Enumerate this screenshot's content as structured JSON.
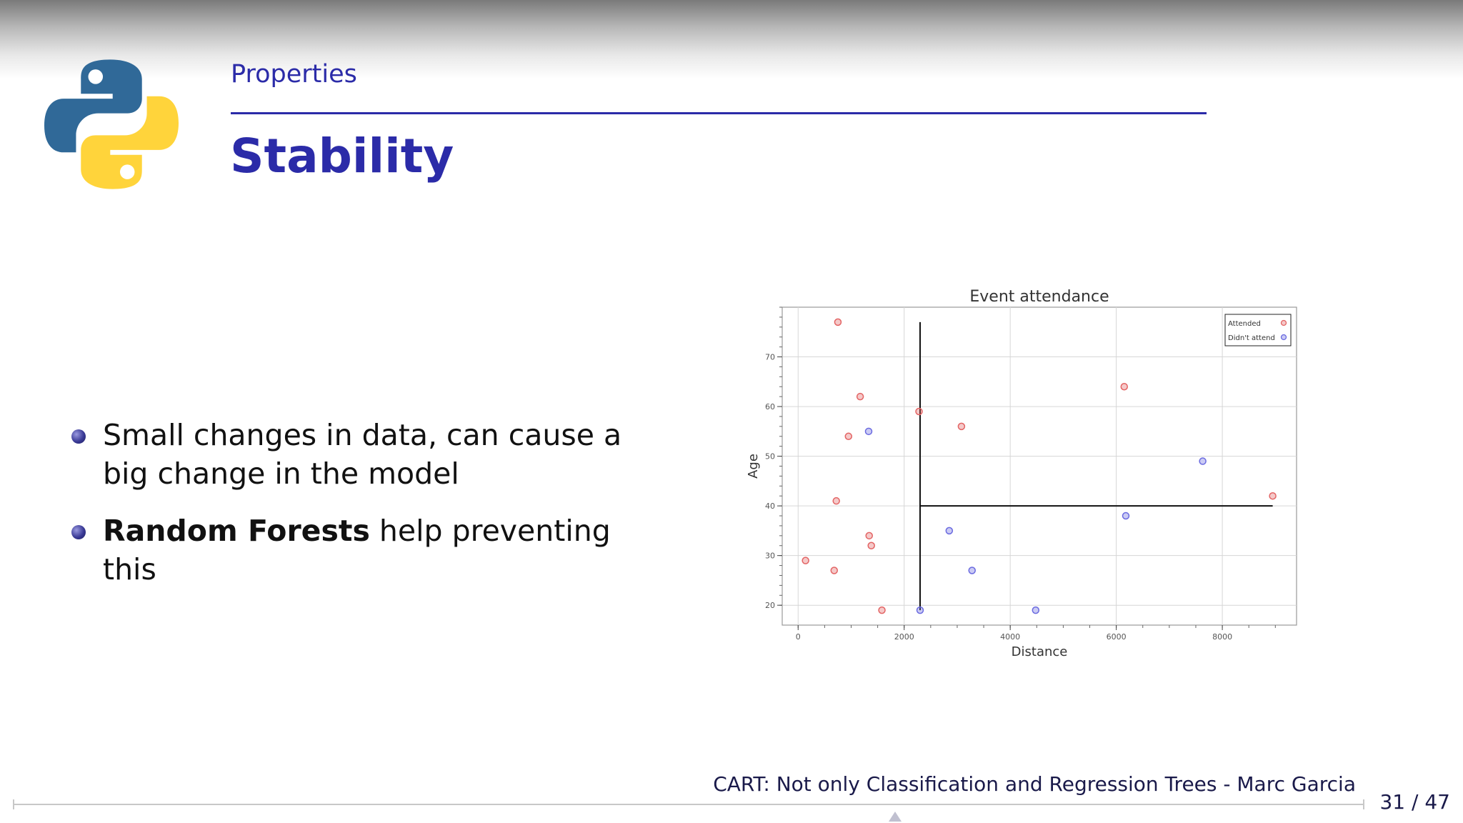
{
  "slide": {
    "section": "Properties",
    "title": "Stability",
    "bullets": [
      {
        "text": "Small changes in data, can cause a big change in the model",
        "bold": ""
      },
      {
        "bold": "Random Forests",
        "text": " help preventing this"
      }
    ]
  },
  "footer": {
    "text": "CART: Not only Classification and Regression Trees - Marc Garcia",
    "page_current": "31",
    "page_total": "47",
    "page_sep": " / "
  },
  "logo": {
    "icon": "python-logo-icon",
    "blue": "#306998",
    "yellow": "#FFD43B"
  },
  "chart_data": {
    "type": "scatter",
    "title": "Event attendance",
    "xlabel": "Distance",
    "ylabel": "Age",
    "xlim": [
      -300,
      9400
    ],
    "ylim": [
      16,
      80
    ],
    "xticks": [
      0,
      2000,
      4000,
      6000,
      8000
    ],
    "yticks": [
      20,
      30,
      40,
      50,
      60,
      70
    ],
    "grid": true,
    "legend_position": "top-right",
    "series": [
      {
        "name": "Attended",
        "color": "#e36464",
        "points": [
          [
            750,
            77
          ],
          [
            1170,
            62
          ],
          [
            950,
            54
          ],
          [
            720,
            41
          ],
          [
            1340,
            34
          ],
          [
            1380,
            32
          ],
          [
            140,
            29
          ],
          [
            680,
            27
          ],
          [
            1580,
            19
          ],
          [
            2280,
            59
          ],
          [
            3080,
            56
          ],
          [
            6150,
            64
          ],
          [
            8950,
            42
          ]
        ]
      },
      {
        "name": "Didn't attend",
        "color": "#6a6ae0",
        "points": [
          [
            1330,
            55
          ],
          [
            2300,
            19
          ],
          [
            2850,
            35
          ],
          [
            3280,
            27
          ],
          [
            4480,
            19
          ],
          [
            6180,
            38
          ],
          [
            7630,
            49
          ]
        ]
      }
    ],
    "split_lines": [
      {
        "orientation": "vertical",
        "x": 2300,
        "y_from": 19,
        "y_to": 77
      },
      {
        "orientation": "horizontal",
        "y": 40,
        "x_from": 2300,
        "x_to": 8950
      }
    ]
  }
}
